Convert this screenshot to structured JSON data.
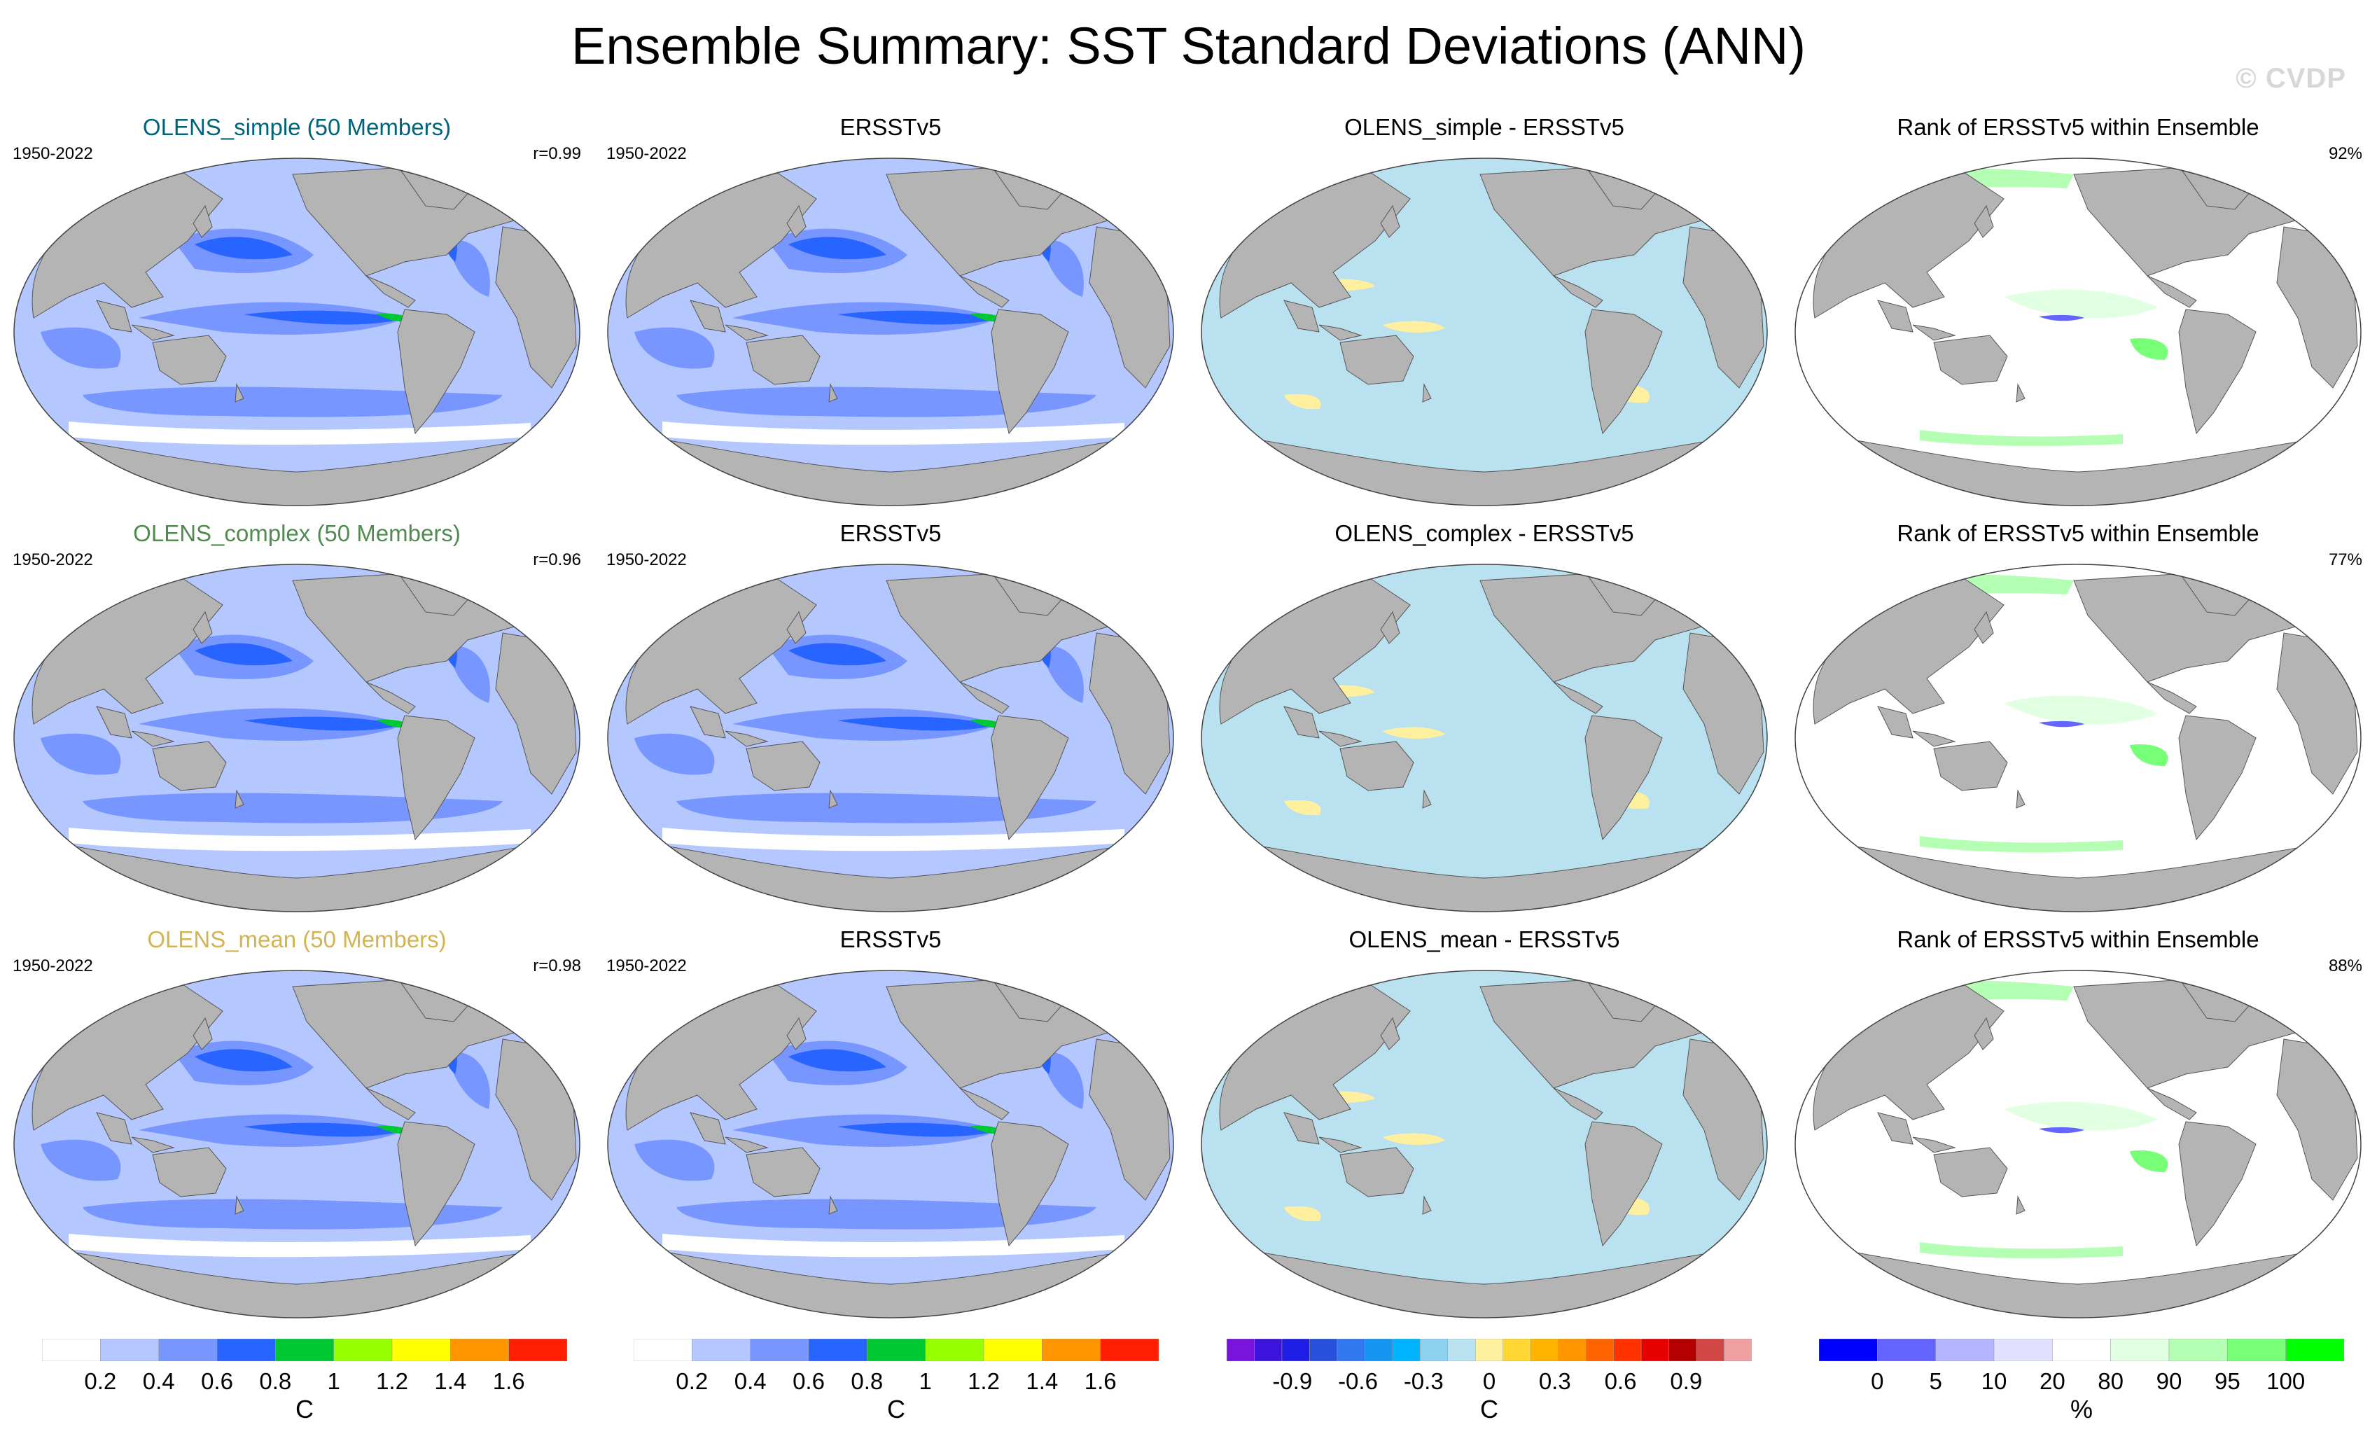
{
  "title": "Ensemble Summary: SST Standard Deviations (ANN)",
  "watermark": "© CVDP",
  "colors": {
    "land": "#b4b4b4",
    "ocean_default": "#ffffff",
    "sd_scale": [
      "#ffffff",
      "#b4c8ff",
      "#7896ff",
      "#2864ff",
      "#00c832",
      "#96ff00",
      "#ffff00",
      "#ff9600",
      "#ff1e00"
    ],
    "diff_scale": [
      "#7814dc",
      "#3c14dc",
      "#1e1ee6",
      "#2850dc",
      "#3278f0",
      "#1496f0",
      "#00b4ff",
      "#8cd2f0",
      "#b9e1f0",
      "#fff0a0",
      "#ffd632",
      "#ffb400",
      "#ff9600",
      "#ff6400",
      "#ff3200",
      "#e60000",
      "#b40000",
      "#d24646",
      "#f0a0a0"
    ],
    "rank_scale": [
      "#0000ff",
      "#6464ff",
      "#b4b4ff",
      "#e1e1ff",
      "#ffffff",
      "#e1ffe1",
      "#b4ffb4",
      "#78ff78",
      "#00ff00"
    ],
    "title_simple": "#006478",
    "title_complex": "#508c50",
    "title_mean": "#d2b450"
  },
  "rows": [
    {
      "panels": [
        {
          "title": "OLENS_simple (50 Members)",
          "left": "1950-2022",
          "right": "r=0.99",
          "kind": "sd"
        },
        {
          "title": "ERSSTv5",
          "left": "1950-2022",
          "right": "",
          "kind": "sd"
        },
        {
          "title": "OLENS_simple - ERSSTv5",
          "left": "",
          "right": "",
          "kind": "diff"
        },
        {
          "title": "Rank of ERSSTv5 within Ensemble",
          "left": "",
          "right": "92%",
          "kind": "rank"
        }
      ]
    },
    {
      "panels": [
        {
          "title": "OLENS_complex (50 Members)",
          "left": "1950-2022",
          "right": "r=0.96",
          "kind": "sd"
        },
        {
          "title": "ERSSTv5",
          "left": "1950-2022",
          "right": "",
          "kind": "sd"
        },
        {
          "title": "OLENS_complex - ERSSTv5",
          "left": "",
          "right": "",
          "kind": "diff"
        },
        {
          "title": "Rank of ERSSTv5 within Ensemble",
          "left": "",
          "right": "77%",
          "kind": "rank"
        }
      ]
    },
    {
      "panels": [
        {
          "title": "OLENS_mean (50 Members)",
          "left": "1950-2022",
          "right": "r=0.98",
          "kind": "sd"
        },
        {
          "title": "ERSSTv5",
          "left": "1950-2022",
          "right": "",
          "kind": "sd"
        },
        {
          "title": "OLENS_mean - ERSSTv5",
          "left": "",
          "right": "",
          "kind": "diff"
        },
        {
          "title": "Rank of ERSSTv5 within Ensemble",
          "left": "",
          "right": "88%",
          "kind": "rank"
        }
      ]
    }
  ],
  "colorbars": [
    {
      "unit": "C",
      "ticks": [
        "0.2",
        "0.4",
        "0.6",
        "0.8",
        "1",
        "1.2",
        "1.4",
        "1.6"
      ],
      "scale": "sd_scale"
    },
    {
      "unit": "C",
      "ticks": [
        "0.2",
        "0.4",
        "0.6",
        "0.8",
        "1",
        "1.2",
        "1.4",
        "1.6"
      ],
      "scale": "sd_scale"
    },
    {
      "unit": "C",
      "ticks": [
        "-0.9",
        "-0.6",
        "-0.3",
        "0",
        "0.3",
        "0.6",
        "0.9"
      ],
      "scale": "diff_scale"
    },
    {
      "unit": "%",
      "ticks": [
        "0",
        "5",
        "10",
        "20",
        "80",
        "90",
        "95",
        "100"
      ],
      "scale": "rank_scale"
    }
  ]
}
